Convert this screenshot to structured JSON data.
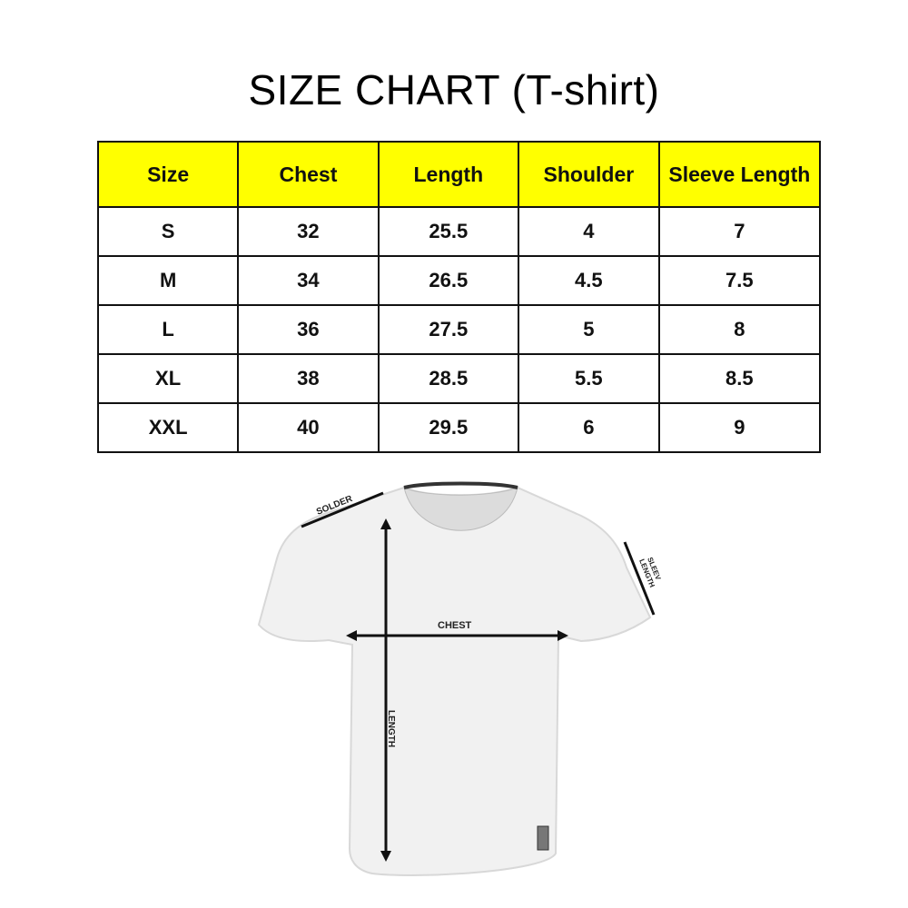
{
  "title": "SIZE CHART (T-shirt)",
  "table": {
    "headers": [
      "Size",
      "Chest",
      "Length",
      "Shoulder",
      "Sleeve Length"
    ],
    "rows": [
      [
        "S",
        "32",
        "25.5",
        "4",
        "7"
      ],
      [
        "M",
        "34",
        "26.5",
        "4.5",
        "7.5"
      ],
      [
        "L",
        "36",
        "27.5",
        "5",
        "8"
      ],
      [
        "XL",
        "38",
        "28.5",
        "5.5",
        "8.5"
      ],
      [
        "XXL",
        "40",
        "29.5",
        "6",
        "9"
      ]
    ],
    "header_color": "#ffff00"
  },
  "diagram": {
    "labels": {
      "shoulder": "SOLDER",
      "chest": "CHEST",
      "length": "LENGTH",
      "sleeve_line1": "SLEEV",
      "sleeve_line2": "LENGTH"
    }
  }
}
